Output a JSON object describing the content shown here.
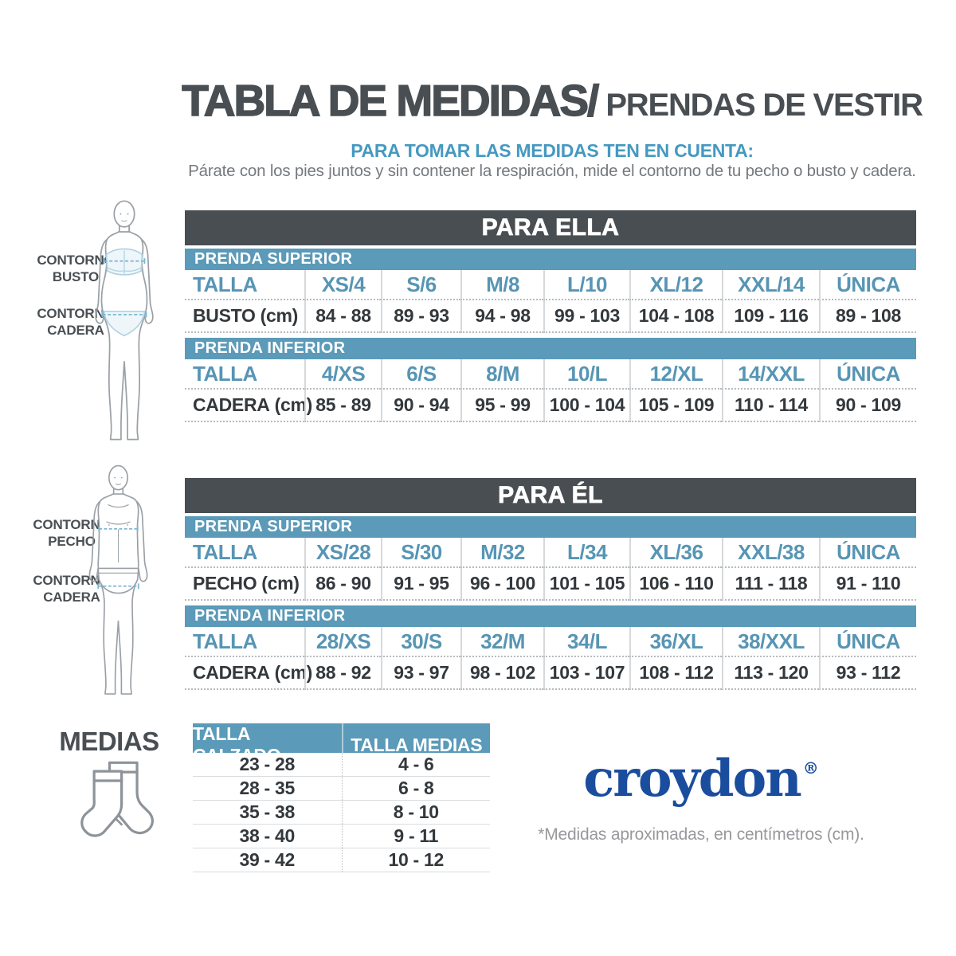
{
  "page": {
    "title_main": "TABLA DE MEDIDAS/",
    "title_sub": "PRENDAS DE VESTIR",
    "subtitle": "PARA TOMAR LAS MEDIDAS TEN EN CUENTA:",
    "description": "Párate con los pies juntos y sin contener la respiración, mide el contorno de tu pecho o busto y cadera."
  },
  "colors": {
    "dark": "#494e53",
    "steel_blue_bar": "#5b9ab8",
    "size_text_blue": "#5795b4",
    "subtitle_blue": "#4599c0",
    "value_text": "#33383c",
    "description_gray": "#75797e",
    "footnote_gray": "#97999c",
    "croydon_blue": "#1a4d9d"
  },
  "figures": {
    "female": {
      "icon": "female-body-figure",
      "labels": [
        [
          "CONTORNO",
          "BUSTO"
        ],
        [
          "CONTORNO",
          "CADERA"
        ]
      ]
    },
    "male": {
      "icon": "male-body-figure",
      "labels": [
        [
          "CONTORNO",
          "PECHO"
        ],
        [
          "CONTORNO",
          "CADERA"
        ]
      ]
    }
  },
  "size_tables": [
    {
      "id": "ella",
      "header": "PARA ELLA",
      "sections": [
        {
          "bar": "PRENDA SUPERIOR",
          "size_label": "TALLA",
          "sizes": [
            "XS/4",
            "S/6",
            "M/8",
            "L/10",
            "XL/12",
            "XXL/14",
            "ÚNICA"
          ],
          "measure": "BUSTO",
          "unit": "(cm)",
          "values": [
            "84 - 88",
            "89 - 93",
            "94 - 98",
            "99 - 103",
            "104 - 108",
            "109 - 116",
            "89 - 108"
          ]
        },
        {
          "bar": "PRENDA INFERIOR",
          "size_label": "TALLA",
          "sizes": [
            "4/XS",
            "6/S",
            "8/M",
            "10/L",
            "12/XL",
            "14/XXL",
            "ÚNICA"
          ],
          "measure": "CADERA",
          "unit": "(cm)",
          "values": [
            "85 - 89",
            "90 - 94",
            "95 - 99",
            "100 - 104",
            "105 - 109",
            "110 - 114",
            "90 - 109"
          ]
        }
      ]
    },
    {
      "id": "el",
      "header": "PARA ÉL",
      "sections": [
        {
          "bar": "PRENDA SUPERIOR",
          "size_label": "TALLA",
          "sizes": [
            "XS/28",
            "S/30",
            "M/32",
            "L/34",
            "XL/36",
            "XXL/38",
            "ÚNICA"
          ],
          "measure": "PECHO",
          "unit": "(cm)",
          "values": [
            "86 - 90",
            "91 - 95",
            "96 - 100",
            "101 - 105",
            "106 - 110",
            "111 - 118",
            "91 - 110"
          ]
        },
        {
          "bar": "PRENDA INFERIOR",
          "size_label": "TALLA",
          "sizes": [
            "28/XS",
            "30/S",
            "32/M",
            "34/L",
            "36/XL",
            "38/XXL",
            "ÚNICA"
          ],
          "measure": "CADERA",
          "unit": "(cm)",
          "values": [
            "88 - 92",
            "93 - 97",
            "98 - 102",
            "103 - 107",
            "108 - 112",
            "113 - 120",
            "93 - 112"
          ]
        }
      ]
    }
  ],
  "medias": {
    "title": "MEDIAS",
    "icon": "socks-icon",
    "columns": [
      "TALLA CALZADO",
      "TALLA MEDIAS"
    ],
    "rows": [
      [
        "23 - 28",
        "4 - 6"
      ],
      [
        "28 - 35",
        "6 - 8"
      ],
      [
        "35 - 38",
        "8 - 10"
      ],
      [
        "38 - 40",
        "9 - 11"
      ],
      [
        "39 - 42",
        "10 - 12"
      ]
    ]
  },
  "brand": {
    "name": "croydon",
    "registered": "®",
    "footnote": "*Medidas aproximadas, en centímetros (cm)."
  }
}
